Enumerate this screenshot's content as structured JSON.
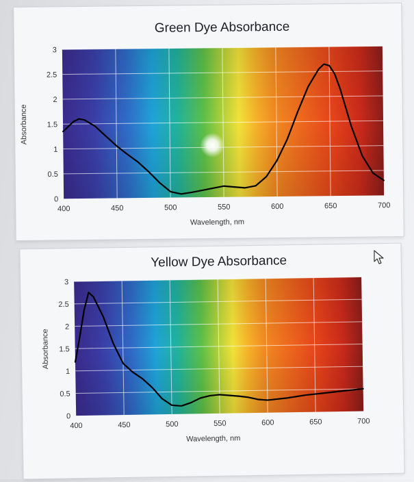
{
  "chart_data": [
    {
      "type": "line",
      "title": "Green Dye Absorbance",
      "xlabel": "Wavelength, nm",
      "ylabel": "Absorbance",
      "xlim": [
        400,
        700
      ],
      "ylim": [
        0,
        3
      ],
      "x_ticks": [
        "400",
        "450",
        "500",
        "550",
        "600",
        "650",
        "700"
      ],
      "y_ticks": [
        "0",
        "0.5",
        "1",
        "1.5",
        "2",
        "2.5",
        "3"
      ],
      "grid": true,
      "background": "visible spectrum",
      "series": [
        {
          "color": "#000000",
          "x": [
            400,
            410,
            415,
            420,
            430,
            440,
            450,
            460,
            470,
            480,
            490,
            500,
            510,
            520,
            530,
            540,
            550,
            560,
            570,
            580,
            590,
            600,
            610,
            620,
            630,
            640,
            645,
            650,
            655,
            660,
            670,
            680,
            690,
            700
          ],
          "y": [
            1.35,
            1.55,
            1.6,
            1.58,
            1.45,
            1.25,
            1.05,
            0.88,
            0.72,
            0.52,
            0.3,
            0.12,
            0.07,
            0.1,
            0.14,
            0.18,
            0.22,
            0.2,
            0.18,
            0.22,
            0.4,
            0.72,
            1.15,
            1.7,
            2.2,
            2.55,
            2.65,
            2.62,
            2.45,
            2.15,
            1.4,
            0.8,
            0.45,
            0.3
          ]
        }
      ]
    },
    {
      "type": "line",
      "title": "Yellow Dye Absorbance",
      "xlabel": "Wavelength, nm",
      "ylabel": "Absorbance",
      "xlim": [
        400,
        700
      ],
      "ylim": [
        0,
        3
      ],
      "x_ticks": [
        "400",
        "450",
        "500",
        "550",
        "600",
        "650",
        "700"
      ],
      "y_ticks": [
        "0",
        "0.5",
        "1",
        "1.5",
        "2",
        "2.5",
        "3"
      ],
      "grid": true,
      "background": "visible spectrum",
      "series": [
        {
          "color": "#000000",
          "x": [
            400,
            405,
            410,
            415,
            420,
            430,
            440,
            450,
            460,
            470,
            480,
            490,
            500,
            510,
            520,
            530,
            540,
            550,
            560,
            570,
            580,
            590,
            600,
            620,
            640,
            660,
            680,
            700
          ],
          "y": [
            1.2,
            1.75,
            2.35,
            2.75,
            2.65,
            2.2,
            1.6,
            1.15,
            0.95,
            0.8,
            0.6,
            0.35,
            0.2,
            0.18,
            0.25,
            0.35,
            0.4,
            0.42,
            0.4,
            0.38,
            0.35,
            0.3,
            0.28,
            0.32,
            0.38,
            0.42,
            0.46,
            0.5
          ]
        }
      ]
    }
  ]
}
